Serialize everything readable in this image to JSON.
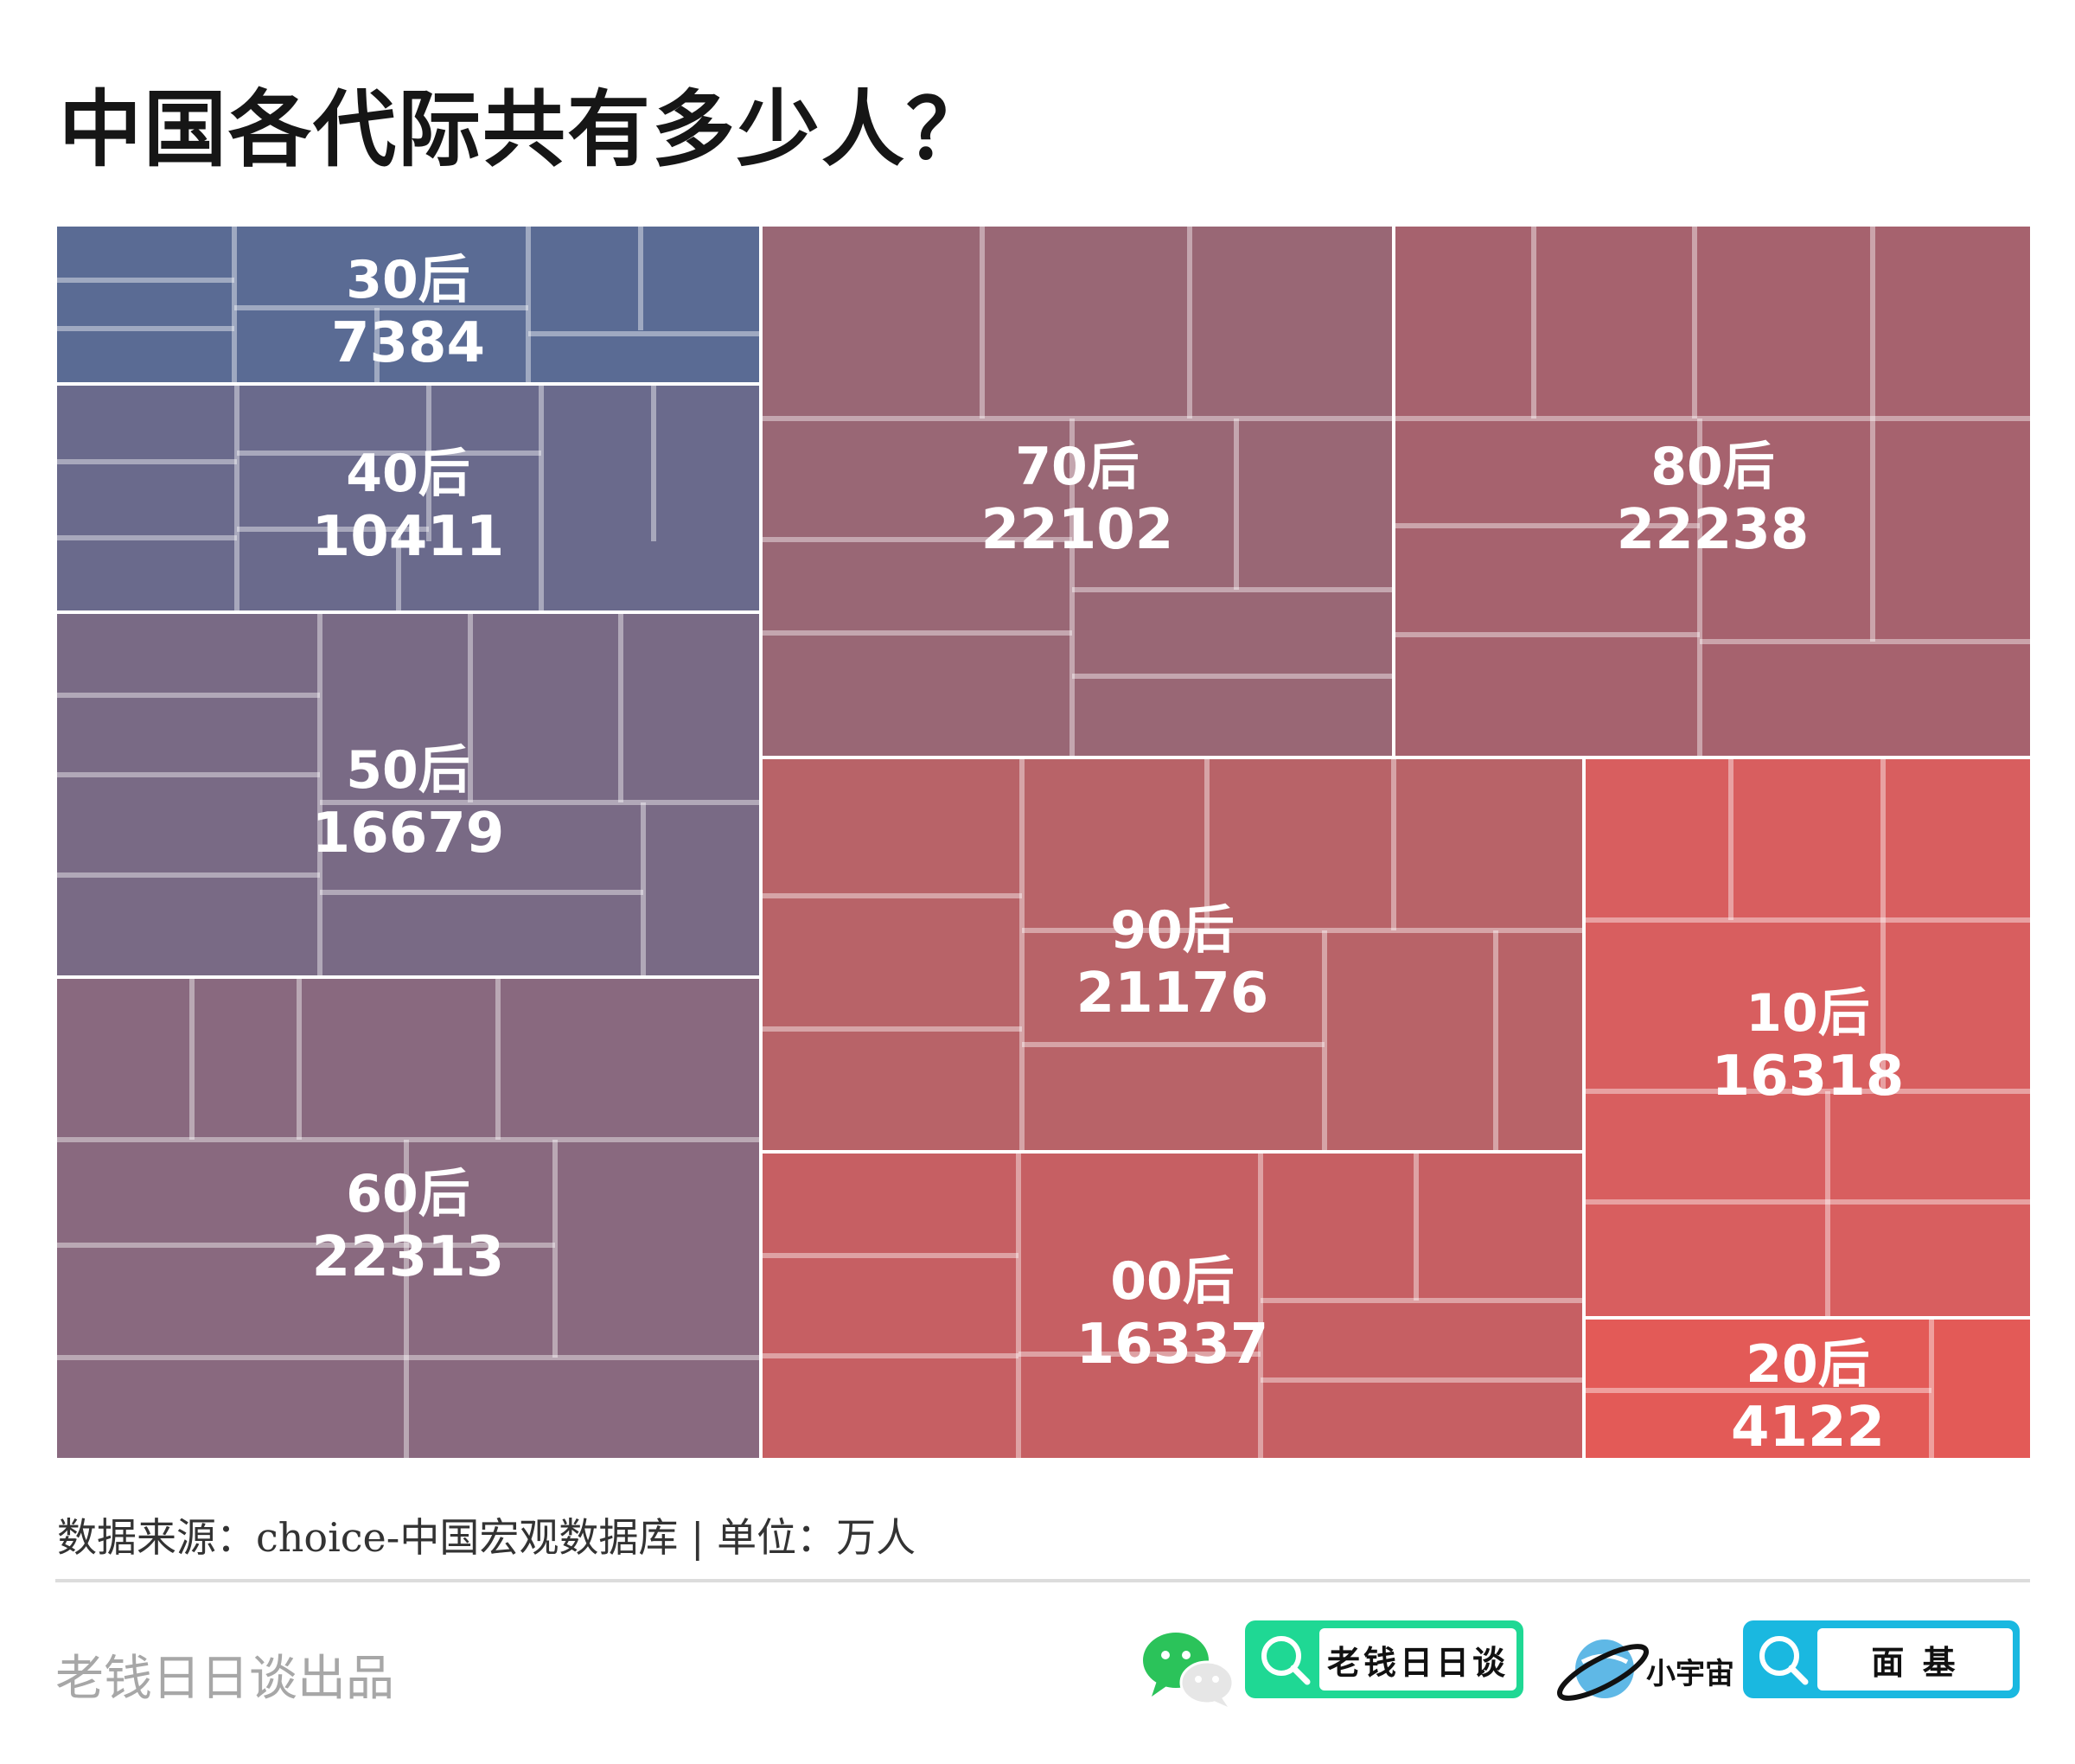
{
  "title": "中国各代际共有多少人？",
  "footer": {
    "source": "数据来源：choice-中国宏观数据库 | 单位：万人",
    "credit": "老钱日日谈出品",
    "brand1_text": "老钱日日谈",
    "brand2_name": "小宇宙",
    "brand2_text": "面 基"
  },
  "chart_data": {
    "type": "treemap",
    "unit": "万人",
    "categories": [
      "30后",
      "40后",
      "50后",
      "60后",
      "70后",
      "80后",
      "90后",
      "00后",
      "10后",
      "20后"
    ],
    "values": [
      7384,
      10411,
      16679,
      22313,
      22102,
      22238,
      21176,
      16337,
      16318,
      4122
    ],
    "colors": [
      "#5a6b94",
      "#6a6a8c",
      "#796a85",
      "#89697f",
      "#996775",
      "#a6626e",
      "#b86368",
      "#c65f63",
      "#d85e5f",
      "#e35a57"
    ]
  }
}
